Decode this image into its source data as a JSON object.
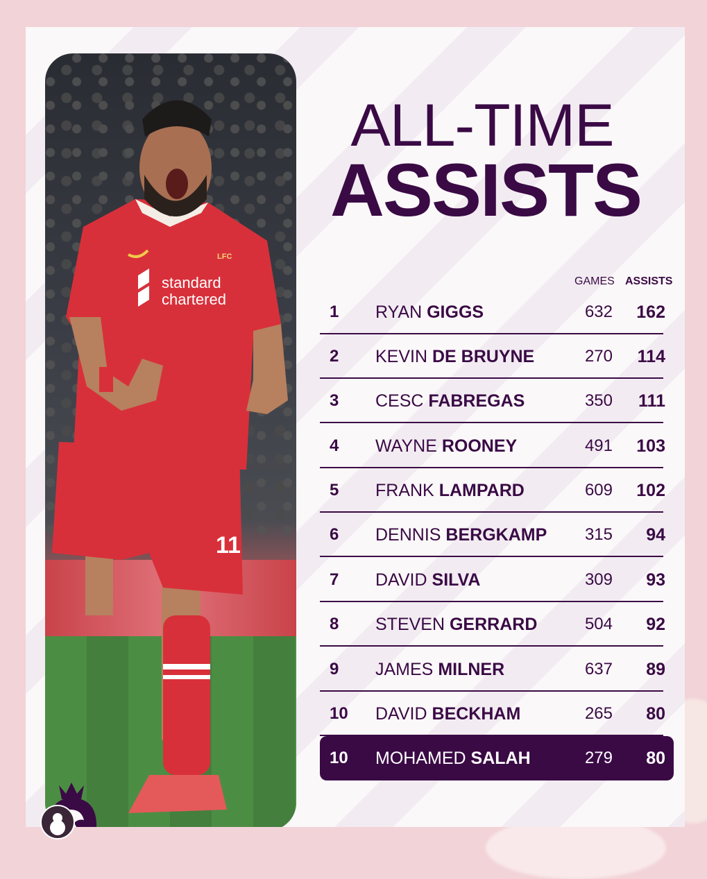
{
  "title": {
    "line1": "ALL-TIME",
    "line2": "ASSISTS"
  },
  "columns": {
    "games": "GAMES",
    "assists": "ASSISTS"
  },
  "rows": [
    {
      "rank": "1",
      "first": "RYAN",
      "last": "GIGGS",
      "games": "632",
      "assists": "162"
    },
    {
      "rank": "2",
      "first": "KEVIN",
      "last": "DE BRUYNE",
      "games": "270",
      "assists": "114"
    },
    {
      "rank": "3",
      "first": "CESC",
      "last": "FABREGAS",
      "games": "350",
      "assists": "111"
    },
    {
      "rank": "4",
      "first": "WAYNE",
      "last": "ROONEY",
      "games": "491",
      "assists": "103"
    },
    {
      "rank": "5",
      "first": "FRANK",
      "last": "LAMPARD",
      "games": "609",
      "assists": "102"
    },
    {
      "rank": "6",
      "first": "DENNIS",
      "last": "BERGKAMP",
      "games": "315",
      "assists": "94"
    },
    {
      "rank": "7",
      "first": "DAVID",
      "last": "SILVA",
      "games": "309",
      "assists": "93"
    },
    {
      "rank": "8",
      "first": "STEVEN",
      "last": "GERRARD",
      "games": "504",
      "assists": "92"
    },
    {
      "rank": "9",
      "first": "JAMES",
      "last": "MILNER",
      "games": "637",
      "assists": "89"
    },
    {
      "rank": "10",
      "first": "DAVID",
      "last": "BECKHAM",
      "games": "265",
      "assists": "80"
    },
    {
      "rank": "10",
      "first": "MOHAMED",
      "last": "SALAH",
      "games": "279",
      "assists": "80",
      "highlight": true
    }
  ],
  "jersey": {
    "sponsor_line1": "standard",
    "sponsor_line2": "chartered",
    "number": "11",
    "club": "LFC"
  },
  "colors": {
    "primary": "#3a0a45",
    "background": "#f2d3d8",
    "kit": "#d8303a"
  }
}
